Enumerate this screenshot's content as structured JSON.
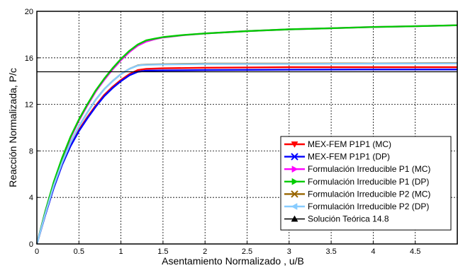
{
  "chart_data": {
    "type": "line",
    "title": "",
    "xlabel": "Asentamiento Normalizado , u/B",
    "ylabel": "Reacción Normalizada, P/c",
    "xlim": [
      0,
      5
    ],
    "ylim": [
      0,
      20
    ],
    "xticks": [
      0,
      0.5,
      1,
      1.5,
      2,
      2.5,
      3,
      3.5,
      4,
      4.5
    ],
    "xtick_labels": [
      "0",
      "0.5",
      "1",
      "1.5",
      "2",
      "2.5",
      "3",
      "3.5",
      "4",
      "4.5"
    ],
    "yticks": [
      0,
      4,
      8,
      12,
      16,
      20
    ],
    "ytick_labels": [
      "0",
      "4",
      "8",
      "12",
      "16",
      "20"
    ],
    "grid": true,
    "legend_position": "bottom-right",
    "series": [
      {
        "name": "MEX-FEM P1P1 (MC)",
        "color": "#ff0000",
        "marker": "triangle-down",
        "x": [
          0,
          0.1,
          0.2,
          0.3,
          0.4,
          0.5,
          0.6,
          0.7,
          0.8,
          0.9,
          1.0,
          1.1,
          1.2,
          1.3,
          1.5,
          2,
          3,
          4,
          5
        ],
        "y": [
          0,
          2.6,
          4.9,
          6.9,
          8.5,
          9.8,
          10.9,
          11.9,
          12.8,
          13.5,
          14.1,
          14.6,
          14.95,
          15.05,
          15.1,
          15.15,
          15.2,
          15.2,
          15.2
        ]
      },
      {
        "name": "MEX-FEM P1P1 (DP)",
        "color": "#0000ff",
        "marker": "x",
        "x": [
          0,
          0.1,
          0.2,
          0.3,
          0.4,
          0.5,
          0.6,
          0.7,
          0.8,
          0.9,
          1.0,
          1.1,
          1.2,
          1.3,
          1.5,
          2,
          3,
          4,
          5
        ],
        "y": [
          0,
          2.5,
          4.8,
          6.8,
          8.4,
          9.7,
          10.8,
          11.8,
          12.7,
          13.4,
          14.0,
          14.5,
          14.8,
          14.9,
          14.92,
          14.95,
          14.98,
          15.0,
          15.0
        ]
      },
      {
        "name": "Formulación Irreducible P1 (MC)",
        "color": "#ff00ff",
        "marker": "triangle-right",
        "x": [
          0,
          0.1,
          0.2,
          0.3,
          0.4,
          0.5,
          0.6,
          0.7,
          0.8,
          0.9,
          1.0,
          1.1,
          1.2,
          1.3,
          1.4,
          1.5,
          1.75,
          2,
          2.5,
          3,
          3.5,
          4,
          4.5,
          5
        ],
        "y": [
          0,
          2.8,
          5.2,
          7.3,
          9.1,
          10.6,
          11.9,
          13.1,
          14.1,
          15.0,
          15.8,
          16.5,
          17.05,
          17.4,
          17.6,
          17.75,
          17.95,
          18.1,
          18.3,
          18.45,
          18.55,
          18.65,
          18.72,
          18.8
        ]
      },
      {
        "name": "Formulación Irreducible P1 (DP)",
        "color": "#00cc00",
        "marker": "triangle-right",
        "x": [
          0,
          0.1,
          0.2,
          0.3,
          0.4,
          0.5,
          0.6,
          0.7,
          0.8,
          0.9,
          1.0,
          1.1,
          1.2,
          1.3,
          1.4,
          1.5,
          1.75,
          2,
          2.5,
          3,
          3.5,
          4,
          4.5,
          5
        ],
        "y": [
          0,
          2.8,
          5.3,
          7.4,
          9.2,
          10.7,
          12.0,
          13.2,
          14.2,
          15.1,
          15.9,
          16.6,
          17.15,
          17.5,
          17.65,
          17.78,
          17.97,
          18.1,
          18.3,
          18.45,
          18.55,
          18.65,
          18.72,
          18.8
        ]
      },
      {
        "name": "Formulación Irreducible P2 (MC)",
        "color": "#996600",
        "marker": "x",
        "x": [
          0,
          0.1,
          0.2,
          0.3,
          0.4,
          0.5,
          0.6,
          0.7,
          0.8,
          0.9,
          1.0,
          1.1,
          1.2,
          1.25,
          1.3,
          1.5,
          2,
          3,
          4,
          5
        ],
        "y": [
          0,
          2.6,
          5.0,
          7.0,
          8.7,
          10.1,
          11.3,
          12.4,
          13.3,
          14.0,
          14.6,
          15.05,
          15.35,
          15.4,
          15.42,
          15.45,
          15.5,
          15.5,
          15.52,
          15.55
        ]
      },
      {
        "name": "Formulación Irreducible P2 (DP)",
        "color": "#88ccff",
        "marker": "triangle-left",
        "x": [
          0,
          0.1,
          0.2,
          0.3,
          0.4,
          0.5,
          0.6,
          0.7,
          0.8,
          0.9,
          1.0,
          1.1,
          1.2,
          1.25,
          1.3,
          1.5,
          2,
          3,
          4,
          5
        ],
        "y": [
          0,
          2.6,
          5.0,
          7.0,
          8.7,
          10.1,
          11.3,
          12.4,
          13.3,
          14.0,
          14.6,
          15.05,
          15.33,
          15.38,
          15.4,
          15.43,
          15.47,
          15.48,
          15.5,
          15.52
        ]
      },
      {
        "name": "Solución Teórica 14.8",
        "color": "#000000",
        "marker": "triangle-up",
        "x": [
          0,
          5
        ],
        "y": [
          14.8,
          14.8
        ]
      }
    ]
  }
}
